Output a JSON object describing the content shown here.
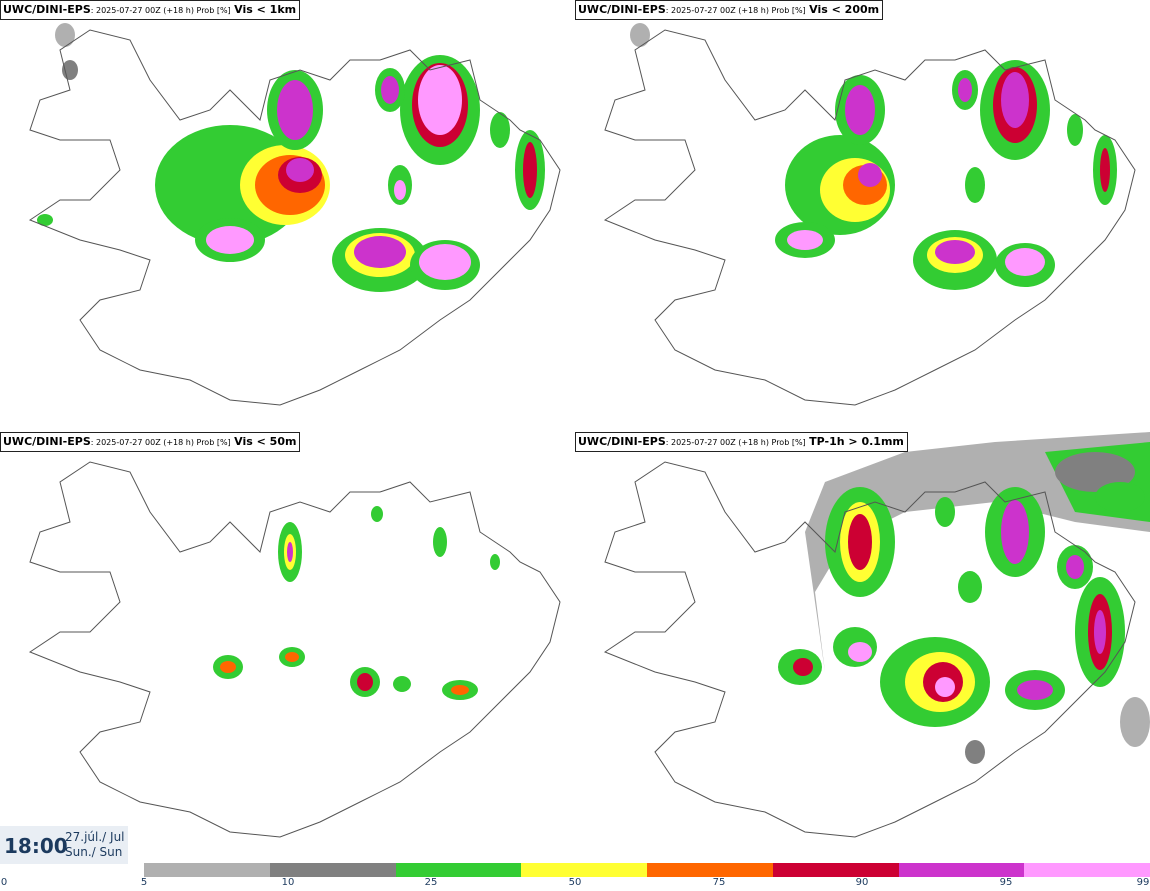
{
  "panels": [
    {
      "model": "UWC/DINI-EPS",
      "meta": ": 2025-07-27 00Z (+18 h) Prob [%]",
      "variable": "Vis < 1km"
    },
    {
      "model": "UWC/DINI-EPS",
      "meta": ": 2025-07-27 00Z (+18 h) Prob [%]",
      "variable": "Vis < 200m"
    },
    {
      "model": "UWC/DINI-EPS",
      "meta": ": 2025-07-27 00Z (+18 h) Prob [%]",
      "variable": "Vis < 50m"
    },
    {
      "model": "UWC/DINI-EPS",
      "meta": ": 2025-07-27 00Z (+18 h) Prob [%]",
      "variable": "TP-1h > 0.1mm"
    }
  ],
  "valid_time": {
    "time": "18:00",
    "date_line1": "27.júl./ Jul",
    "date_line2": "Sun./ Sun"
  },
  "colorbar": {
    "ticks": [
      "0",
      "5",
      "10",
      "25",
      "50",
      "75",
      "90",
      "95",
      "99"
    ],
    "colors": [
      "#b0b0b0",
      "#808080",
      "#33cc33",
      "#ffff33",
      "#ff6600",
      "#cc0033",
      "#cc33cc",
      "#ff99ff"
    ]
  }
}
